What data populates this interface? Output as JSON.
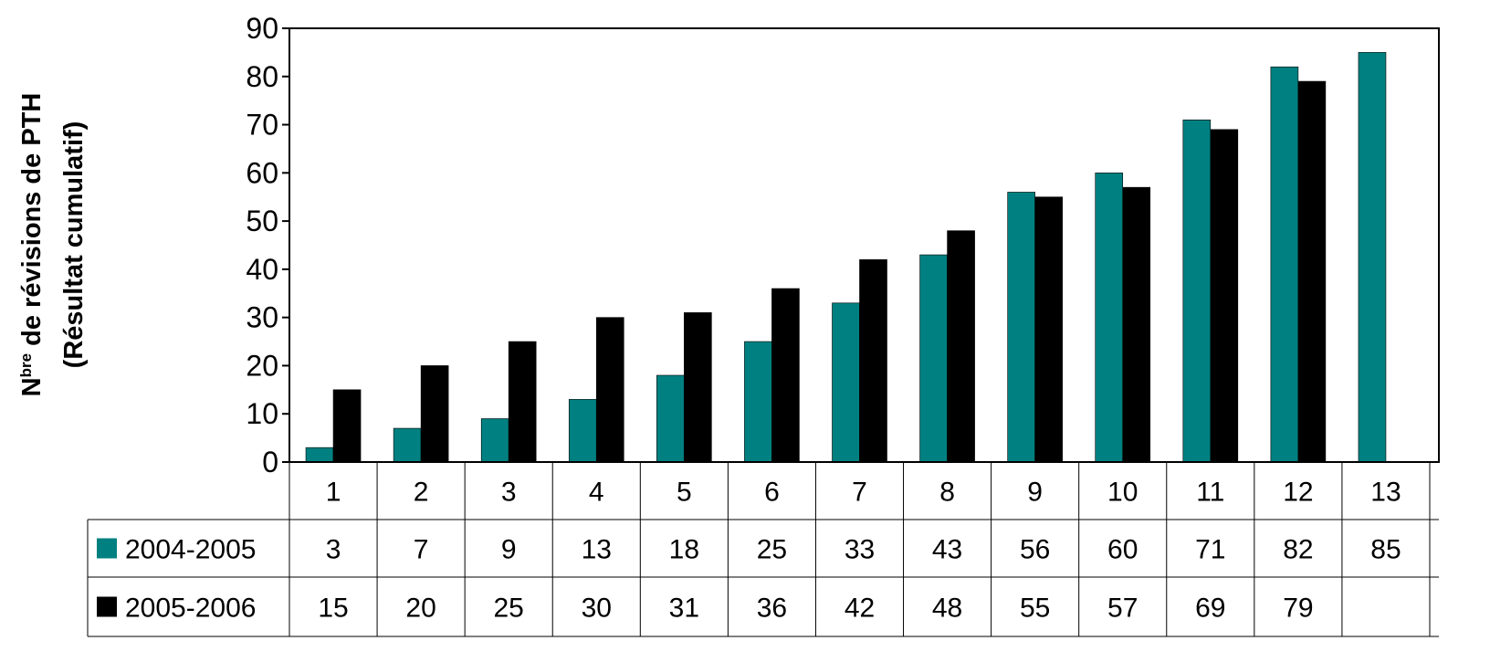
{
  "chart_data": {
    "type": "bar",
    "title": "",
    "xlabel": "",
    "ylabel": {
      "line1_prefix": "N",
      "line1_superscript": "bre",
      "line1_rest": " de révisions de PTH",
      "line2": "(Résultat cumulatif)"
    },
    "ylim": [
      0,
      90
    ],
    "yticks": [
      0,
      10,
      20,
      30,
      40,
      50,
      60,
      70,
      80,
      90
    ],
    "categories": [
      "1",
      "2",
      "3",
      "4",
      "5",
      "6",
      "7",
      "8",
      "9",
      "10",
      "11",
      "12",
      "13"
    ],
    "series": [
      {
        "name": "2004-2005",
        "color": "#008080",
        "values": [
          3,
          7,
          9,
          13,
          18,
          25,
          33,
          43,
          56,
          60,
          71,
          82,
          85
        ]
      },
      {
        "name": "2005-2006",
        "color": "#000000",
        "values": [
          15,
          20,
          25,
          30,
          31,
          36,
          42,
          48,
          55,
          57,
          69,
          79,
          null
        ]
      }
    ],
    "legend": "data-table-rows",
    "grid": false
  }
}
